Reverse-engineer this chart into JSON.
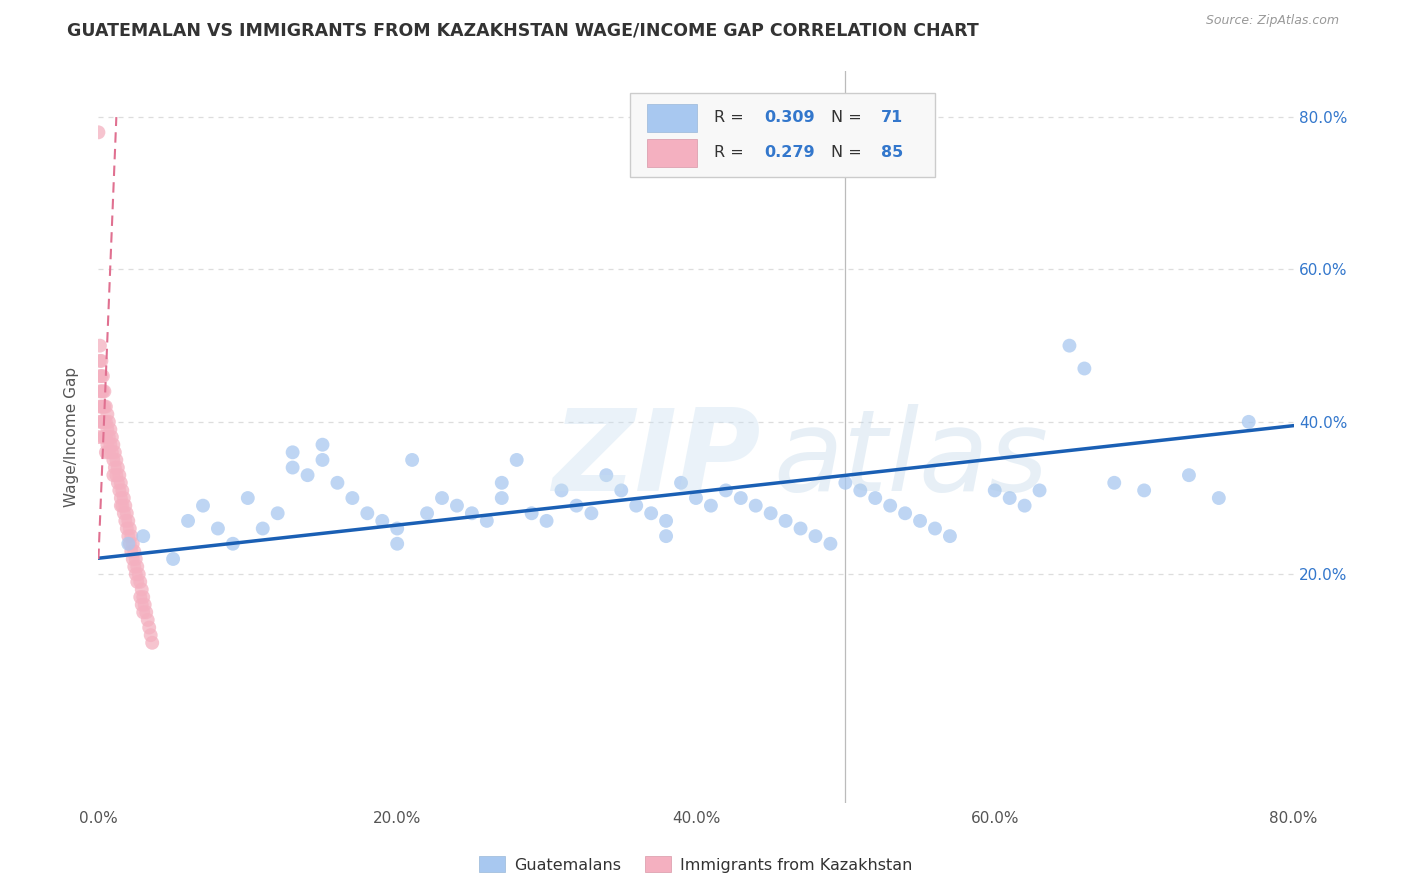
{
  "title": "GUATEMALAN VS IMMIGRANTS FROM KAZAKHSTAN WAGE/INCOME GAP CORRELATION CHART",
  "source": "Source: ZipAtlas.com",
  "ylabel": "Wage/Income Gap",
  "blue_label": "Guatemalans",
  "pink_label": "Immigrants from Kazakhstan",
  "blue_R": "0.309",
  "blue_N": "71",
  "pink_R": "0.279",
  "pink_N": "85",
  "blue_color": "#a8c8f0",
  "blue_line_color": "#1a5fb4",
  "pink_color": "#f4b0c0",
  "pink_line_color": "#e07090",
  "background_color": "#ffffff",
  "grid_color": "#dddddd",
  "right_tick_color": "#3377cc",
  "title_color": "#333333",
  "source_color": "#999999",
  "xlim": [
    0.0,
    0.8
  ],
  "ylim": [
    -0.1,
    0.86
  ],
  "xticks": [
    0.0,
    0.2,
    0.4,
    0.6,
    0.8
  ],
  "xtick_labels": [
    "0.0%",
    "20.0%",
    "40.0%",
    "60.0%",
    "80.0%"
  ],
  "yticks": [
    0.2,
    0.4,
    0.6,
    0.8
  ],
  "right_ytick_labels": [
    "20.0%",
    "40.0%",
    "60.0%",
    "80.0%"
  ],
  "blue_x": [
    0.02,
    0.03,
    0.05,
    0.06,
    0.07,
    0.08,
    0.09,
    0.1,
    0.11,
    0.12,
    0.13,
    0.13,
    0.14,
    0.15,
    0.15,
    0.16,
    0.17,
    0.18,
    0.19,
    0.2,
    0.2,
    0.21,
    0.22,
    0.23,
    0.24,
    0.25,
    0.26,
    0.27,
    0.27,
    0.28,
    0.29,
    0.3,
    0.31,
    0.32,
    0.33,
    0.34,
    0.35,
    0.36,
    0.37,
    0.38,
    0.38,
    0.39,
    0.4,
    0.41,
    0.42,
    0.43,
    0.44,
    0.45,
    0.46,
    0.47,
    0.48,
    0.49,
    0.5,
    0.51,
    0.52,
    0.53,
    0.54,
    0.55,
    0.56,
    0.57,
    0.6,
    0.61,
    0.62,
    0.63,
    0.65,
    0.66,
    0.68,
    0.7,
    0.73,
    0.75,
    0.77
  ],
  "blue_y": [
    0.24,
    0.25,
    0.22,
    0.27,
    0.29,
    0.26,
    0.24,
    0.3,
    0.26,
    0.28,
    0.36,
    0.34,
    0.33,
    0.37,
    0.35,
    0.32,
    0.3,
    0.28,
    0.27,
    0.26,
    0.24,
    0.35,
    0.28,
    0.3,
    0.29,
    0.28,
    0.27,
    0.32,
    0.3,
    0.35,
    0.28,
    0.27,
    0.31,
    0.29,
    0.28,
    0.33,
    0.31,
    0.29,
    0.28,
    0.27,
    0.25,
    0.32,
    0.3,
    0.29,
    0.31,
    0.3,
    0.29,
    0.28,
    0.27,
    0.26,
    0.25,
    0.24,
    0.32,
    0.31,
    0.3,
    0.29,
    0.28,
    0.27,
    0.26,
    0.25,
    0.31,
    0.3,
    0.29,
    0.31,
    0.5,
    0.47,
    0.32,
    0.31,
    0.33,
    0.3,
    0.4
  ],
  "pink_x": [
    0.0,
    0.0,
    0.001,
    0.001,
    0.001,
    0.001,
    0.001,
    0.001,
    0.002,
    0.002,
    0.002,
    0.002,
    0.002,
    0.003,
    0.003,
    0.003,
    0.003,
    0.003,
    0.004,
    0.004,
    0.004,
    0.004,
    0.005,
    0.005,
    0.005,
    0.005,
    0.006,
    0.006,
    0.006,
    0.007,
    0.007,
    0.007,
    0.008,
    0.008,
    0.009,
    0.009,
    0.01,
    0.01,
    0.01,
    0.011,
    0.011,
    0.012,
    0.012,
    0.013,
    0.013,
    0.014,
    0.014,
    0.015,
    0.015,
    0.015,
    0.016,
    0.016,
    0.017,
    0.017,
    0.018,
    0.018,
    0.019,
    0.019,
    0.02,
    0.02,
    0.021,
    0.021,
    0.022,
    0.022,
    0.023,
    0.023,
    0.024,
    0.024,
    0.025,
    0.025,
    0.026,
    0.026,
    0.027,
    0.028,
    0.028,
    0.029,
    0.029,
    0.03,
    0.03,
    0.031,
    0.032,
    0.033,
    0.034,
    0.035,
    0.036
  ],
  "pink_y": [
    0.78,
    0.38,
    0.5,
    0.48,
    0.46,
    0.44,
    0.42,
    0.4,
    0.48,
    0.46,
    0.44,
    0.42,
    0.4,
    0.46,
    0.44,
    0.42,
    0.4,
    0.38,
    0.44,
    0.42,
    0.4,
    0.38,
    0.42,
    0.4,
    0.38,
    0.36,
    0.41,
    0.39,
    0.37,
    0.4,
    0.38,
    0.36,
    0.39,
    0.37,
    0.38,
    0.36,
    0.37,
    0.35,
    0.33,
    0.36,
    0.34,
    0.35,
    0.33,
    0.34,
    0.32,
    0.33,
    0.31,
    0.32,
    0.3,
    0.29,
    0.31,
    0.29,
    0.3,
    0.28,
    0.29,
    0.27,
    0.28,
    0.26,
    0.27,
    0.25,
    0.26,
    0.24,
    0.25,
    0.23,
    0.24,
    0.22,
    0.23,
    0.21,
    0.22,
    0.2,
    0.21,
    0.19,
    0.2,
    0.19,
    0.17,
    0.18,
    0.16,
    0.17,
    0.15,
    0.16,
    0.15,
    0.14,
    0.13,
    0.12,
    0.11
  ],
  "blue_line_x0": 0.0,
  "blue_line_y0": 0.221,
  "blue_line_x1": 0.8,
  "blue_line_y1": 0.395,
  "pink_line_x0": 0.0,
  "pink_line_y0": 0.22,
  "pink_line_x1": 0.012,
  "pink_line_y1": 0.8
}
